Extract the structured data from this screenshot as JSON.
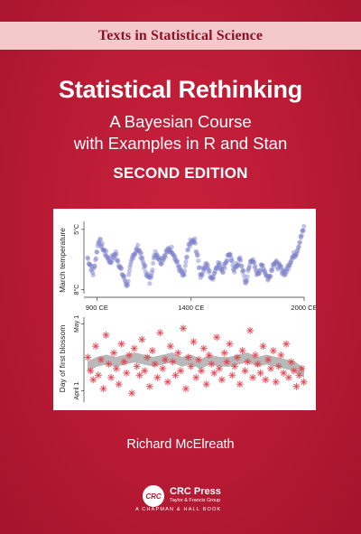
{
  "series": "Texts in Statistical Science",
  "title": "Statistical Rethinking",
  "subtitle_line1": "A Bayesian Course",
  "subtitle_line2": "with Examples in R and Stan",
  "edition": "SECOND EDITION",
  "author": "Richard McElreath",
  "publisher": {
    "logo_text": "CRC",
    "name": "CRC Press",
    "group": "Taylor & Francis Group",
    "imprint": "A CHAPMAN & HALL BOOK"
  },
  "colors": {
    "background": "#b81a34",
    "series_band": "#f4c9cc",
    "temperature_points": "#7b7fc8",
    "blossom_points": "#e2414f",
    "trend": "#7f7f7f"
  },
  "chart_data": [
    {
      "type": "scatter",
      "ylabel": "March temperature",
      "yticks": [
        "5°C",
        "8°C"
      ],
      "ylim": [
        4.8,
        8.4
      ],
      "xlim": [
        850,
        2000
      ],
      "xticks": [
        "900 CE",
        "1400 CE",
        "2000 CE"
      ],
      "xtick_values": [
        900,
        1400,
        2000
      ],
      "series": [
        {
          "x": [
            850,
            880,
            910,
            940,
            970,
            1000,
            1030,
            1060,
            1090,
            1120,
            1150,
            1180,
            1210,
            1240,
            1270,
            1300,
            1330,
            1360,
            1390,
            1420,
            1450,
            1480,
            1510,
            1540,
            1570,
            1600,
            1630,
            1660,
            1690,
            1720,
            1750,
            1780,
            1810,
            1840,
            1870,
            1900,
            1930,
            1960,
            1980,
            2000
          ],
          "values": [
            6.6,
            5.8,
            7.5,
            6.9,
            6.4,
            6.8,
            5.9,
            5.2,
            6.7,
            7.1,
            6.2,
            5.4,
            6.9,
            6.4,
            6.9,
            7.0,
            6.2,
            5.6,
            7.3,
            7.4,
            5.7,
            6.3,
            5.5,
            6.3,
            6.0,
            6.8,
            6.0,
            6.5,
            5.3,
            6.6,
            5.8,
            6.2,
            5.5,
            6.4,
            6.1,
            5.8,
            6.5,
            6.9,
            7.5,
            8.1
          ]
        }
      ]
    },
    {
      "type": "scatter",
      "ylabel": "Day of first blossom",
      "yticks": [
        "April 1",
        "May 1"
      ],
      "ytick_values": [
        91,
        121
      ],
      "ylim": [
        86,
        124
      ],
      "xlim": [
        850,
        2000
      ],
      "series": [
        {
          "x": [
            852,
            866,
            880,
            893,
            907,
            921,
            934,
            948,
            962,
            975,
            989,
            1003,
            1016,
            1030,
            1044,
            1057,
            1071,
            1085,
            1098,
            1112,
            1126,
            1139,
            1153,
            1167,
            1180,
            1194,
            1208,
            1221,
            1235,
            1249,
            1262,
            1276,
            1290,
            1303,
            1317,
            1331,
            1344,
            1358,
            1372,
            1385,
            1399,
            1413,
            1426,
            1440,
            1454,
            1467,
            1481,
            1495,
            1508,
            1522,
            1536,
            1549,
            1563,
            1577,
            1590,
            1604,
            1618,
            1631,
            1645,
            1659,
            1672,
            1686,
            1700,
            1713,
            1727,
            1741,
            1754,
            1768,
            1782,
            1795,
            1809,
            1823,
            1836,
            1850,
            1864,
            1877,
            1891,
            1905,
            1918,
            1932,
            1946,
            1959,
            1973,
            1987,
            1998
          ],
          "values": [
            106,
            100,
            96,
            111,
            98,
            105,
            92,
            116,
            103,
            97,
            108,
            101,
            94,
            112,
            104,
            99,
            107,
            90,
            110,
            102,
            98,
            114,
            100,
            106,
            93,
            109,
            103,
            97,
            117,
            101,
            105,
            95,
            111,
            104,
            98,
            108,
            100,
            119,
            92,
            106,
            102,
            113,
            97,
            105,
            100,
            110,
            94,
            107,
            103,
            99,
            115,
            101,
            96,
            108,
            104,
            112,
            98,
            102,
            106,
            94,
            109,
            100,
            104,
            118,
            97,
            107,
            103,
            99,
            111,
            96,
            105,
            101,
            109,
            95,
            102,
            107,
            99,
            112,
            97,
            104,
            100,
            93,
            98,
            101,
            95
          ]
        },
        {
          "name": "",
          "x": [
            850,
            900,
            950,
            1000,
            1050,
            1100,
            1150,
            1200,
            1250,
            1300,
            1350,
            1400,
            1450,
            1500,
            1550,
            1600,
            1650,
            1700,
            1750,
            1800,
            1850,
            1900,
            1950,
            2000
          ],
          "values": [
            102,
            104,
            105,
            104,
            105,
            106,
            105,
            104,
            105,
            106,
            104,
            105,
            103,
            105,
            104,
            104,
            105,
            106,
            104,
            105,
            104,
            103,
            102,
            99
          ]
        }
      ]
    }
  ]
}
